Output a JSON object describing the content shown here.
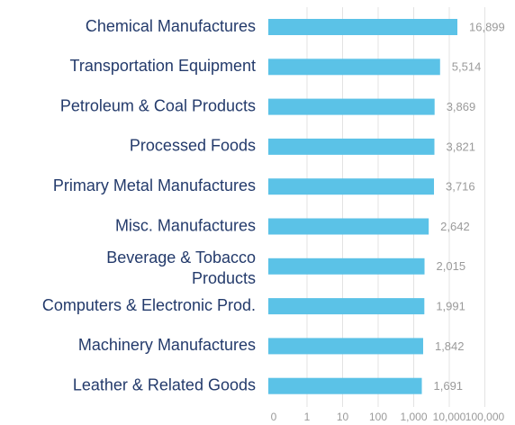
{
  "chart_data": {
    "type": "bar",
    "orientation": "horizontal",
    "title": "",
    "xlabel": "",
    "ylabel": "",
    "x_scale": "log",
    "xlim": [
      1,
      100000
    ],
    "grid": true,
    "categories": [
      "Chemical Manufactures",
      "Transportation Equipment",
      "Petroleum & Coal Products",
      "Processed Foods",
      "Primary Metal Manufactures",
      "Misc. Manufactures",
      "Beverage & Tobacco Products",
      "Computers & Electronic Prod.",
      "Machinery Manufactures",
      "Leather & Related Goods"
    ],
    "values": [
      16899,
      5514,
      3869,
      3821,
      3716,
      2642,
      2015,
      1991,
      1842,
      1691
    ],
    "value_labels": [
      "16,899",
      "5,514",
      "3,869",
      "3,821",
      "3,716",
      "2,642",
      "2,015",
      "1,991",
      "1,842",
      "1,691"
    ],
    "ticks": [
      {
        "label": "0",
        "value": 0
      },
      {
        "label": "1",
        "value": 1
      },
      {
        "label": "10",
        "value": 10
      },
      {
        "label": "100",
        "value": 100
      },
      {
        "label": "1,000",
        "value": 1000
      },
      {
        "label": "10,000",
        "value": 10000
      },
      {
        "label": "100,000",
        "value": 100000
      }
    ],
    "colors": {
      "bar": "#5bc2e7",
      "category_text": "#233a6b",
      "value_text": "#9a9a9a",
      "grid": "#e3e3e3"
    }
  }
}
